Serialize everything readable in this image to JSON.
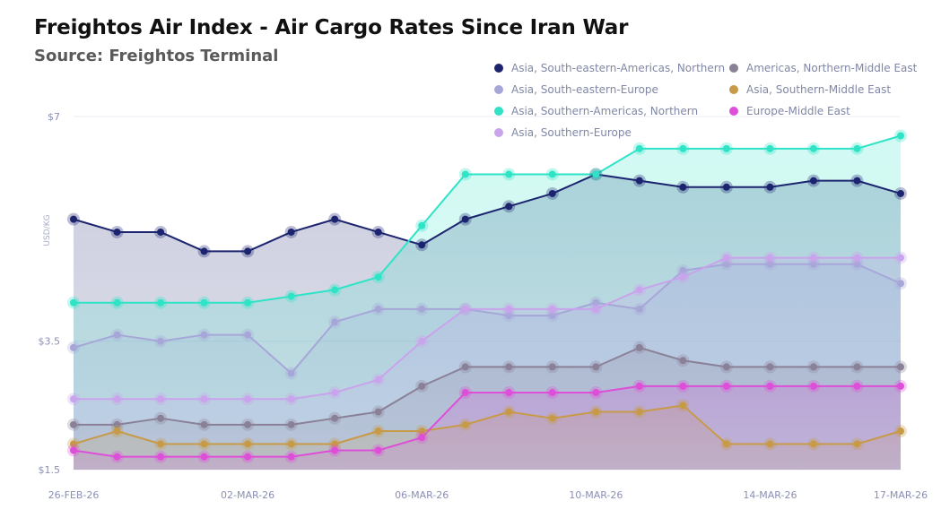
{
  "header": {
    "title": "Freightos Air Index - Air Cargo Rates Since Iran War",
    "subtitle": "Source: Freightos Terminal"
  },
  "colors": {
    "asia_se_am_n": "#1c2470",
    "asia_se_eu": "#a7a6d8",
    "asia_s_am_n": "#2ee3c6",
    "asia_s_eu": "#c9a3ec",
    "am_n_me": "#8a8198",
    "asia_s_me": "#c79a48",
    "eu_me": "#dd4fd8"
  },
  "chart_data": {
    "type": "area",
    "title": "Freightos Air Index - Air Cargo Rates Since Iran War",
    "subtitle": "Source: Freightos Terminal",
    "xlabel": "",
    "ylabel": "USD/KG",
    "ylim": [
      1.5,
      7
    ],
    "yticks": [
      "$1.5",
      "$3.5",
      "$7"
    ],
    "ytick_values": [
      1.5,
      3.5,
      7
    ],
    "x": [
      "26-FEB-26",
      "27-FEB-26",
      "28-FEB-26",
      "01-MAR-26",
      "02-MAR-26",
      "03-MAR-26",
      "04-MAR-26",
      "05-MAR-26",
      "06-MAR-26",
      "07-MAR-26",
      "08-MAR-26",
      "09-MAR-26",
      "10-MAR-26",
      "11-MAR-26",
      "12-MAR-26",
      "13-MAR-26",
      "14-MAR-26",
      "15-MAR-26",
      "16-MAR-26",
      "17-MAR-26"
    ],
    "xtick_labels": [
      {
        "index": 0,
        "label": "26-FEB-26"
      },
      {
        "index": 4,
        "label": "02-MAR-26"
      },
      {
        "index": 8,
        "label": "06-MAR-26"
      },
      {
        "index": 12,
        "label": "10-MAR-26"
      },
      {
        "index": 16,
        "label": "14-MAR-26"
      },
      {
        "index": 19,
        "label": "17-MAR-26"
      }
    ],
    "grid": false,
    "legend_position": "top-right",
    "series": [
      {
        "name": "Asia, South-eastern-Americas, Northern",
        "color_key": "asia_se_am_n",
        "values": [
          5.4,
          5.2,
          5.2,
          4.9,
          4.9,
          5.2,
          5.4,
          5.2,
          5.0,
          5.4,
          5.6,
          5.8,
          6.1,
          6.0,
          5.9,
          5.9,
          5.9,
          6.0,
          6.0,
          5.8
        ]
      },
      {
        "name": "Asia, South-eastern-Europe",
        "color_key": "asia_se_eu",
        "values": [
          3.4,
          3.6,
          3.5,
          3.6,
          3.6,
          3.0,
          3.8,
          4.0,
          4.0,
          4.0,
          3.9,
          3.9,
          4.1,
          4.0,
          4.6,
          4.7,
          4.7,
          4.7,
          4.7,
          4.4
        ]
      },
      {
        "name": "Asia, Southern-Americas, Northern",
        "color_key": "asia_s_am_n",
        "values": [
          4.1,
          4.1,
          4.1,
          4.1,
          4.1,
          4.2,
          4.3,
          4.5,
          5.3,
          6.1,
          6.1,
          6.1,
          6.1,
          6.5,
          6.5,
          6.5,
          6.5,
          6.5,
          6.5,
          6.7
        ]
      },
      {
        "name": "Asia, Southern-Europe",
        "color_key": "asia_s_eu",
        "values": [
          2.6,
          2.6,
          2.6,
          2.6,
          2.6,
          2.6,
          2.7,
          2.9,
          3.5,
          4.0,
          4.0,
          4.0,
          4.0,
          4.3,
          4.5,
          4.8,
          4.8,
          4.8,
          4.8,
          4.8
        ]
      },
      {
        "name": "Americas, Northern-Middle East",
        "color_key": "am_n_me",
        "values": [
          2.2,
          2.2,
          2.3,
          2.2,
          2.2,
          2.2,
          2.3,
          2.4,
          2.8,
          3.1,
          3.1,
          3.1,
          3.1,
          3.4,
          3.2,
          3.1,
          3.1,
          3.1,
          3.1,
          3.1
        ]
      },
      {
        "name": "Asia, Southern-Middle East",
        "color_key": "asia_s_me",
        "values": [
          1.9,
          2.1,
          1.9,
          1.9,
          1.9,
          1.9,
          1.9,
          2.1,
          2.1,
          2.2,
          2.4,
          2.3,
          2.4,
          2.4,
          2.5,
          1.9,
          1.9,
          1.9,
          1.9,
          2.1
        ]
      },
      {
        "name": "Europe-Middle East",
        "color_key": "eu_me",
        "values": [
          1.8,
          1.7,
          1.7,
          1.7,
          1.7,
          1.7,
          1.8,
          1.8,
          2.0,
          2.7,
          2.7,
          2.7,
          2.7,
          2.8,
          2.8,
          2.8,
          2.8,
          2.8,
          2.8,
          2.8
        ]
      }
    ],
    "legend": [
      {
        "label": "Asia, South-eastern-Americas, Northern",
        "color_key": "asia_se_am_n"
      },
      {
        "label": "Americas, Northern-Middle East",
        "color_key": "am_n_me"
      },
      {
        "label": "Asia, South-eastern-Europe",
        "color_key": "asia_se_eu"
      },
      {
        "label": "Asia, Southern-Middle East",
        "color_key": "asia_s_me"
      },
      {
        "label": "Asia, Southern-Americas, Northern",
        "color_key": "asia_s_am_n"
      },
      {
        "label": "Europe-Middle East",
        "color_key": "eu_me"
      },
      {
        "label": "Asia, Southern-Europe",
        "color_key": "asia_s_eu"
      }
    ]
  }
}
